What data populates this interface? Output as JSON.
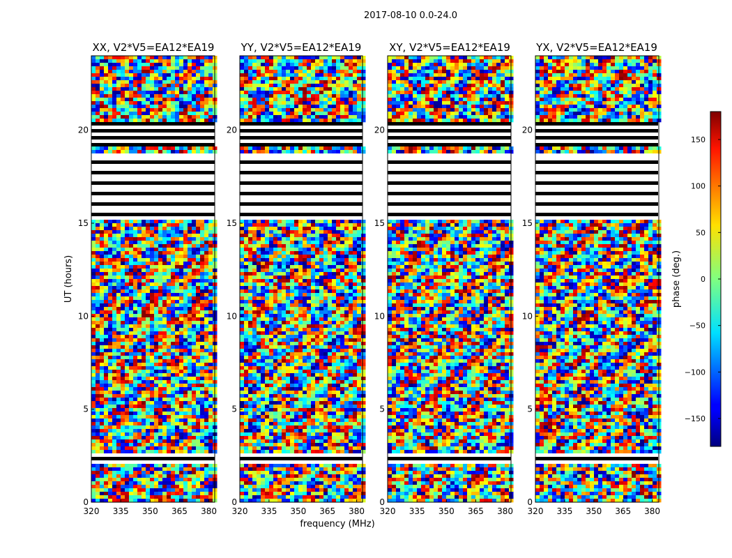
{
  "figure": {
    "suptitle": "2017-08-10 0.0-24.0"
  },
  "colorbar": {
    "label": "phase (deg.)",
    "ticks": [
      150,
      100,
      50,
      0,
      -50,
      -100,
      -150
    ],
    "tick_labels": [
      "150",
      "100",
      "50",
      "0",
      "−50",
      "−100",
      "−150"
    ],
    "range": [
      -180,
      180
    ],
    "colormap": "jet"
  },
  "chart_data": [
    {
      "type": "heatmap",
      "title": "XX, V2*V5=EA12*EA19",
      "xlabel": "",
      "ylabel": "UT (hours)",
      "xlim": [
        320,
        383
      ],
      "ylim": [
        0,
        24
      ],
      "xticks": [
        320,
        335,
        350,
        365,
        380
      ],
      "yticks": [
        0,
        5,
        10,
        15,
        20
      ],
      "z_unit": "phase (deg.)",
      "colors": [
        "#ff2a00",
        "#000080",
        "#00c0ff",
        "#ffd000"
      ]
    },
    {
      "type": "heatmap",
      "title": "YY, V2*V5=EA12*EA19",
      "xlabel": "frequency (MHz)",
      "ylabel": "",
      "xlim": [
        320,
        383
      ],
      "ylim": [
        0,
        24
      ],
      "xticks": [
        320,
        335,
        350,
        365,
        380
      ],
      "yticks": [
        0,
        5,
        10,
        15,
        20
      ],
      "z_unit": "phase (deg.)",
      "colors": [
        "#40ffc0",
        "#00c0ff",
        "#ffd000",
        "#ff2a00"
      ]
    },
    {
      "type": "heatmap",
      "title": "XY, V2*V5=EA12*EA19",
      "xlabel": "",
      "ylabel": "",
      "xlim": [
        320,
        383
      ],
      "ylim": [
        0,
        24
      ],
      "xticks": [
        320,
        335,
        350,
        365,
        380
      ],
      "yticks": [
        0,
        5,
        10,
        15,
        20
      ],
      "z_unit": "phase (deg.)",
      "colors": [
        "#00c0ff",
        "#ff2a00",
        "#80ff80",
        "#0000ff"
      ]
    },
    {
      "type": "heatmap",
      "title": "YX, V2*V5=EA12*EA19",
      "xlabel": "",
      "ylabel": "",
      "xlim": [
        320,
        383
      ],
      "ylim": [
        0,
        24
      ],
      "xticks": [
        320,
        335,
        350,
        365,
        380
      ],
      "yticks": [
        0,
        5,
        10,
        15,
        20
      ],
      "z_unit": "phase (deg.)",
      "colors": [
        "#00c0ff",
        "#ff2a00",
        "#ffd000",
        "#0000ff"
      ]
    }
  ]
}
